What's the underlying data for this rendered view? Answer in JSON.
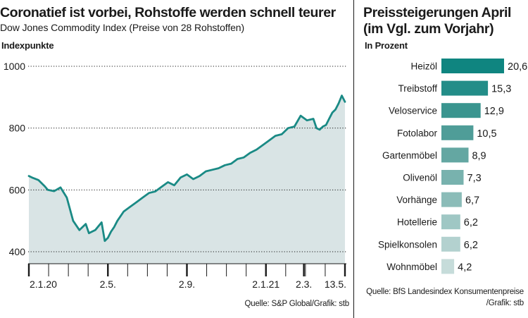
{
  "left_chart": {
    "title": "Coronatief ist vorbei, Rohstoffe werden schnell teurer",
    "subtitle": "Dow Jones Commodity Index (Preise von 28 Rohstoffen)",
    "unit": "Indexpunkte",
    "source": "Quelle: S&P Global/Grafik: stb"
  },
  "right_chart": {
    "title": "Preissteigerungen April\n(im Vgl. zum Vorjahr)",
    "unit": "In Prozent",
    "source": "Quelle: BfS Landesindex Konsumentenpreise\n/Grafik: stb"
  },
  "chart_data": [
    {
      "type": "area",
      "title": "Coronatief ist vorbei, Rohstoffe werden schnell teurer",
      "subtitle": "Dow Jones Commodity Index (Preise von 28 Rohstoffen)",
      "ylabel": "Indexpunkte",
      "ylim": [
        400,
        1000
      ],
      "yticks": [
        400,
        600,
        800,
        1000
      ],
      "xticks": [
        "2.1.20",
        "2.5.",
        "2.9.",
        "2.1.21",
        "2.3.",
        "13.5."
      ],
      "xtick_positions": [
        0,
        25,
        50,
        75,
        87,
        100
      ],
      "grid": "horizontal dotted",
      "color": "#1a8a85",
      "fill": "#d9e4e5",
      "series": [
        {
          "x": [
            0,
            1,
            3,
            5,
            6,
            8,
            10,
            12,
            14,
            16,
            18,
            19,
            21,
            23,
            24,
            25,
            26,
            27,
            28,
            30,
            32,
            34,
            36,
            38,
            40,
            42,
            44,
            46,
            48,
            50,
            52,
            54,
            56,
            58,
            60,
            62,
            64,
            66,
            68,
            70,
            72,
            74,
            76,
            78,
            80,
            82,
            84,
            86,
            88,
            90,
            91,
            92,
            93,
            94,
            95,
            96,
            97,
            98,
            99,
            100
          ],
          "values": [
            645,
            640,
            632,
            612,
            600,
            596,
            608,
            575,
            500,
            470,
            490,
            460,
            470,
            495,
            435,
            445,
            465,
            480,
            500,
            530,
            545,
            560,
            575,
            590,
            595,
            610,
            625,
            615,
            640,
            650,
            635,
            645,
            660,
            665,
            670,
            680,
            685,
            700,
            705,
            720,
            730,
            745,
            760,
            775,
            780,
            800,
            805,
            840,
            825,
            830,
            800,
            795,
            805,
            810,
            830,
            850,
            860,
            880,
            905,
            885
          ]
        }
      ]
    },
    {
      "type": "bar",
      "orientation": "horizontal",
      "title": "Preissteigerungen April\n(im Vgl. zum Vorjahr)",
      "unit": "In Prozent",
      "categories": [
        "Heizöl",
        "Treibstoff",
        "Veloservice",
        "Fotolabor",
        "Gartenmöbel",
        "Olivenöl",
        "Vorhänge",
        "Hotellerie",
        "Spielkonsolen",
        "Wohnmöbel"
      ],
      "values": [
        20.6,
        15.3,
        12.9,
        10.5,
        8.9,
        7.3,
        6.7,
        6.2,
        6.2,
        4.2
      ],
      "labels": [
        "20,6",
        "15,3",
        "12,9",
        "10,5",
        "8,9",
        "7,3",
        "6,7",
        "6,2",
        "6,2",
        "4,2"
      ],
      "colors": [
        "#0f8580",
        "#238d88",
        "#3a958f",
        "#4f9d98",
        "#64a7a2",
        "#78b2ae",
        "#8bbcb8",
        "#9fc7c4",
        "#b3d1cf",
        "#c6dcda"
      ]
    }
  ]
}
